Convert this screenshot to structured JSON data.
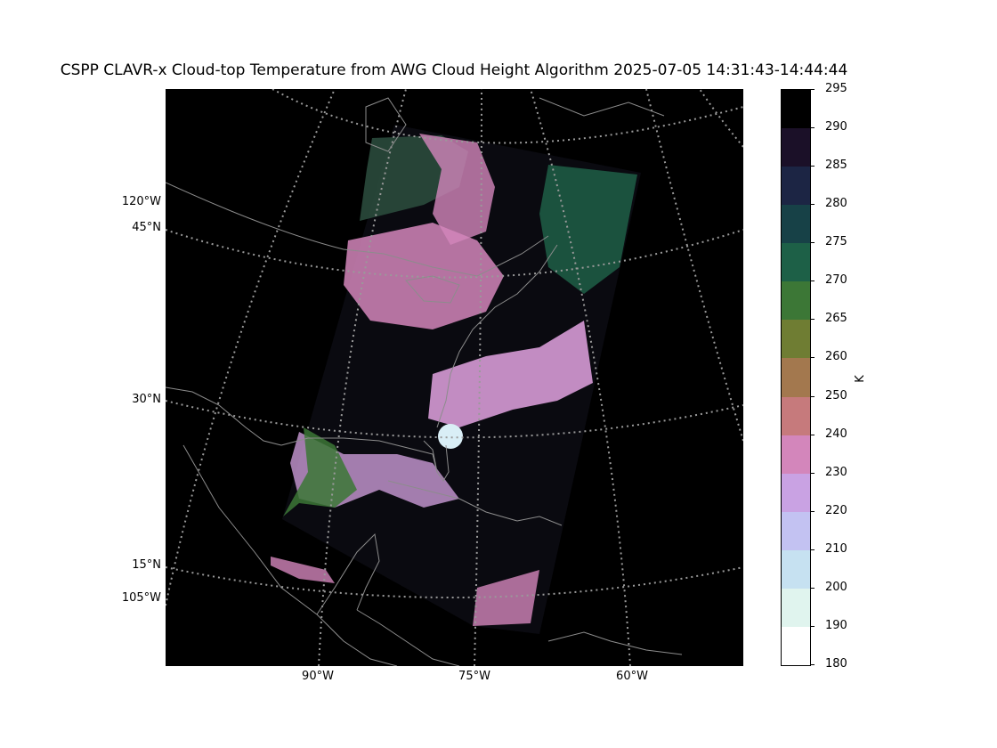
{
  "title": "CSPP CLAVR-x Cloud-top Temperature from AWG Cloud Height Algorithm 2025-07-05 14:31:43-14:44:44",
  "lat_labels": [
    "120°W",
    "45°N",
    "30°N",
    "15°N",
    "105°W"
  ],
  "lon_labels": [
    "90°W",
    "75°W",
    "60°W"
  ],
  "colorbar": {
    "unit": "K",
    "ticks": [
      "295",
      "290",
      "285",
      "280",
      "275",
      "270",
      "265",
      "260",
      "250",
      "240",
      "230",
      "220",
      "210",
      "200",
      "190",
      "180"
    ],
    "colors": [
      "#000000",
      "#1b1028",
      "#1c2544",
      "#174147",
      "#1d6047",
      "#3c7736",
      "#6f7d33",
      "#a3784e",
      "#c67a7c",
      "#d386bb",
      "#c9a2e3",
      "#c3c2f2",
      "#c6e1f1",
      "#e0f4ee",
      "#ffffff"
    ],
    "colors_meaning": "top to bottom, 295 K to 180 K"
  },
  "colors": {
    "background": "#000000",
    "coastline": "#8c8c8c",
    "gridline": "#9a9a9a"
  }
}
